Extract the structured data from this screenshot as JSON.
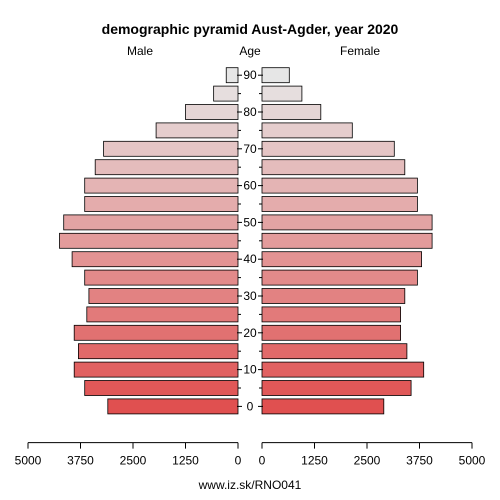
{
  "chart_data": {
    "type": "bar",
    "subtype": "population-pyramid",
    "title": "demographic pyramid Aust-Agder, year 2020",
    "left_label": "Male",
    "center_label": "Age",
    "right_label": "Female",
    "footer": "www.iz.sk/RNO041",
    "age_groups": [
      "0-4",
      "5-9",
      "10-14",
      "15-19",
      "20-24",
      "25-29",
      "30-34",
      "35-39",
      "40-44",
      "45-49",
      "50-54",
      "55-59",
      "60-64",
      "65-69",
      "70-74",
      "75-79",
      "80-84",
      "85-89",
      "90+"
    ],
    "age_tick_labels": [
      "0",
      "10",
      "20",
      "30",
      "40",
      "50",
      "60",
      "70",
      "80",
      "90"
    ],
    "male": [
      3100,
      3650,
      3900,
      3800,
      3900,
      3600,
      3550,
      3650,
      3950,
      4250,
      4150,
      3650,
      3650,
      3400,
      3200,
      1950,
      1250,
      580,
      280
    ],
    "female": [
      2900,
      3550,
      3850,
      3450,
      3300,
      3300,
      3400,
      3700,
      3800,
      4050,
      4050,
      3700,
      3700,
      3400,
      3150,
      2150,
      1400,
      950,
      650
    ],
    "x_tick_labels_left": [
      "5000",
      "3750",
      "2500",
      "1250",
      "0"
    ],
    "x_tick_labels_right": [
      "0",
      "1250",
      "2500",
      "3750",
      "5000"
    ],
    "xlim": [
      0,
      5000
    ],
    "color_young": "#e05050",
    "color_old": "#e6e6e6"
  }
}
